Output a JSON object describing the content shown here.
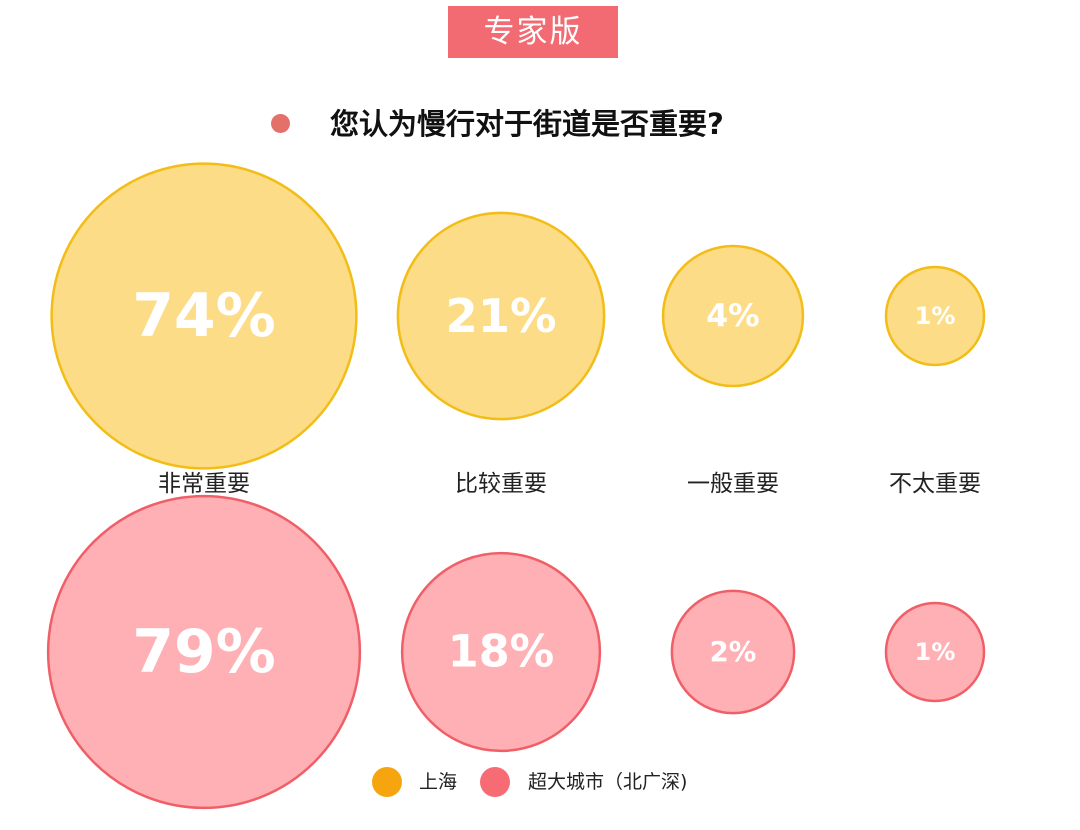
{
  "header": {
    "badge": "专家版",
    "question": "您认为慢行对于街道是否重要?"
  },
  "colors": {
    "badge_bg": "#f26a72",
    "question_dot": "#e4706a",
    "shanghai_fill": "#fcdc86",
    "shanghai_stroke": "#f2bd17",
    "shanghai_legend": "#f7a50f",
    "megacity_fill": "#ffb0b4",
    "megacity_stroke": "#f05f68",
    "megacity_legend": "#f76b75"
  },
  "legend": [
    {
      "label": "上海",
      "swatch": "shanghai_legend"
    },
    {
      "label": "超大城市（北广深)",
      "swatch": "megacity_legend"
    }
  ],
  "chart_data": {
    "type": "bubble",
    "unit": "%",
    "categories": [
      "非常重要",
      "比较重要",
      "一般重要",
      "不太重要"
    ],
    "series": [
      {
        "name": "上海",
        "values": [
          74,
          21,
          4,
          1
        ]
      },
      {
        "name": "超大城市（北广深)",
        "values": [
          79,
          18,
          2,
          1
        ]
      }
    ]
  }
}
